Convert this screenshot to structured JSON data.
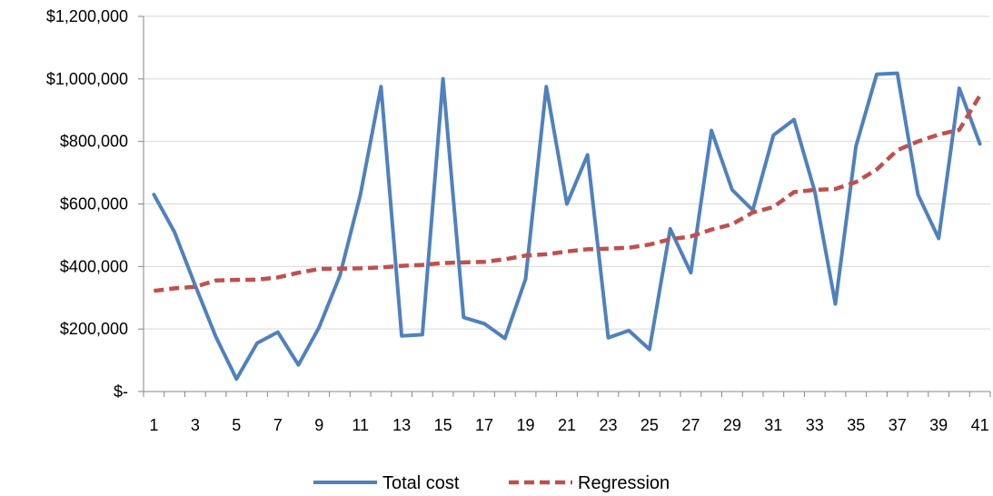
{
  "chart_data": {
    "type": "line",
    "x": [
      1,
      2,
      3,
      4,
      5,
      6,
      7,
      8,
      9,
      10,
      11,
      12,
      13,
      14,
      15,
      16,
      17,
      18,
      19,
      20,
      21,
      22,
      23,
      24,
      25,
      26,
      27,
      28,
      29,
      30,
      31,
      32,
      33,
      34,
      35,
      36,
      37,
      38,
      39,
      40,
      41
    ],
    "x_tick_labels": [
      "1",
      "3",
      "5",
      "7",
      "9",
      "11",
      "13",
      "15",
      "17",
      "19",
      "21",
      "23",
      "25",
      "27",
      "29",
      "31",
      "33",
      "35",
      "37",
      "39",
      "41"
    ],
    "y_tick_labels": [
      "$-",
      "$200,000",
      "$400,000",
      "$600,000",
      "$800,000",
      "$1,000,000",
      "$1,200,000"
    ],
    "ylim": [
      0,
      1200000
    ],
    "grid": true,
    "legend_position": "bottom",
    "series": [
      {
        "name": "Total cost",
        "color": "#4F81BD",
        "style": "solid",
        "values": [
          630000,
          510000,
          340000,
          175000,
          40000,
          155000,
          190000,
          85000,
          205000,
          370000,
          630000,
          975000,
          178000,
          182000,
          1000000,
          237000,
          217000,
          170000,
          360000,
          975000,
          600000,
          757000,
          172000,
          195000,
          135000,
          520000,
          380000,
          835000,
          645000,
          580000,
          820000,
          870000,
          640000,
          280000,
          785000,
          1015000,
          1018000,
          630000,
          490000,
          970000,
          792000
        ]
      },
      {
        "name": "Regression",
        "color": "#C0504D",
        "style": "dashed",
        "values": [
          322000,
          330000,
          335000,
          355000,
          357000,
          358000,
          365000,
          380000,
          392000,
          393000,
          394000,
          397000,
          402000,
          405000,
          411000,
          413000,
          415000,
          423000,
          435000,
          439000,
          448000,
          455000,
          457000,
          460000,
          470000,
          487000,
          496000,
          518000,
          535000,
          573000,
          590000,
          638000,
          645000,
          648000,
          670000,
          710000,
          772000,
          800000,
          822000,
          837000,
          947000
        ]
      }
    ]
  }
}
